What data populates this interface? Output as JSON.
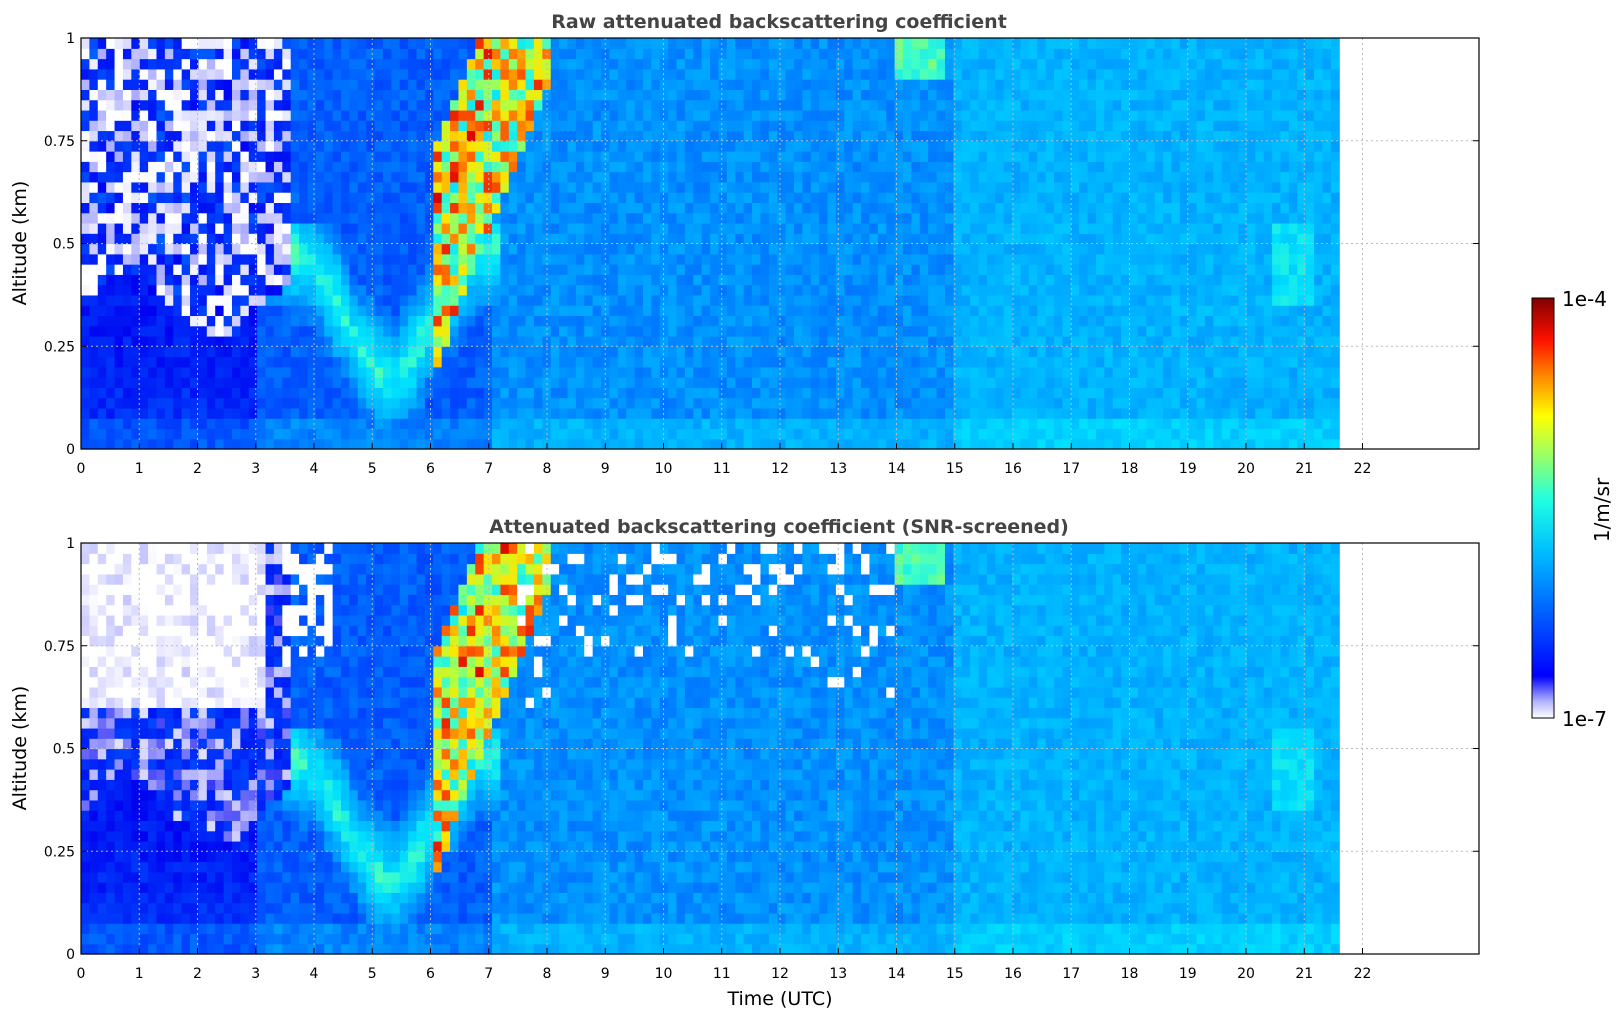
{
  "colors": {
    "colormap": [
      "#ffffff",
      "#0000ff",
      "#0050ff",
      "#00a0ff",
      "#00e0ff",
      "#40ffc0",
      "#c0ff40",
      "#ffe000",
      "#ff6000",
      "#e00000",
      "#800000"
    ]
  },
  "chart_data": [
    {
      "type": "heatmap",
      "title": "Raw attenuated backscattering coefficient",
      "xlabel": "",
      "ylabel": "Altitude (km)",
      "xlim": [
        0,
        24
      ],
      "ylim": [
        0,
        1
      ],
      "x_ticks": [
        "0",
        "1",
        "2",
        "3",
        "4",
        "5",
        "6",
        "7",
        "8",
        "9",
        "10",
        "11",
        "12",
        "13",
        "14",
        "15",
        "16",
        "17",
        "18",
        "19",
        "20",
        "21",
        "22"
      ],
      "y_ticks": [
        "0",
        "0.25",
        "0.5",
        "0.75",
        "1"
      ],
      "grid": true,
      "data_extent_x": [
        0,
        21.6
      ],
      "screened": false
    },
    {
      "type": "heatmap",
      "title": "Attenuated backscattering coefficient (SNR-screened)",
      "xlabel": "Time (UTC)",
      "ylabel": "Altitude (km)",
      "xlim": [
        0,
        24
      ],
      "ylim": [
        0,
        1
      ],
      "x_ticks": [
        "0",
        "1",
        "2",
        "3",
        "4",
        "5",
        "6",
        "7",
        "8",
        "9",
        "10",
        "11",
        "12",
        "13",
        "14",
        "15",
        "16",
        "17",
        "18",
        "19",
        "20",
        "21",
        "22"
      ],
      "y_ticks": [
        "0",
        "0.25",
        "0.5",
        "0.75",
        "1"
      ],
      "grid": true,
      "data_extent_x": [
        0,
        21.6
      ],
      "screened": true
    }
  ],
  "colorbar": {
    "label": "1/m/sr",
    "max_label": "1e-4",
    "min_label": "1e-7",
    "scale": "log",
    "range": [
      1e-07,
      0.0001
    ]
  }
}
